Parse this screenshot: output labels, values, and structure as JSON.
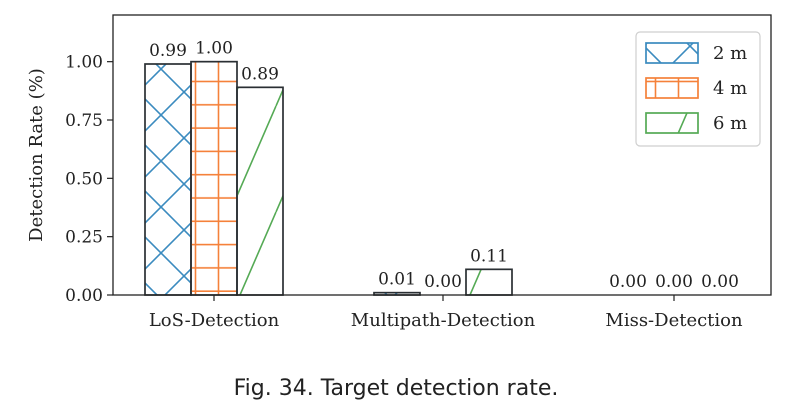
{
  "caption": "Fig. 34.  Target detection rate.",
  "chart_data": {
    "type": "bar",
    "categories": [
      "LoS-Detection",
      "Multipath-Detection",
      "Miss-Detection"
    ],
    "series": [
      {
        "name": "2 m",
        "values": [
          0.99,
          0.01,
          0.0
        ],
        "labels": [
          "0.99",
          "0.01",
          "0.00"
        ],
        "color": "#3b8bbf",
        "hatch": "x"
      },
      {
        "name": "4 m",
        "values": [
          1.0,
          0.0,
          0.0
        ],
        "labels": [
          "1.00",
          "0.00",
          "0.00"
        ],
        "color": "#f5813a",
        "hatch": "+"
      },
      {
        "name": "6 m",
        "values": [
          0.89,
          0.11,
          0.0
        ],
        "labels": [
          "0.89",
          "0.11",
          "0.00"
        ],
        "color": "#55aa55",
        "hatch": "/"
      }
    ],
    "ylabel": "Detection Rate (%)",
    "xlabel": "",
    "ylim": [
      0,
      1.2
    ],
    "yticks": [
      "0.00",
      "0.25",
      "0.50",
      "0.75",
      "1.00"
    ],
    "grid": false,
    "legend_position": "top-right"
  }
}
